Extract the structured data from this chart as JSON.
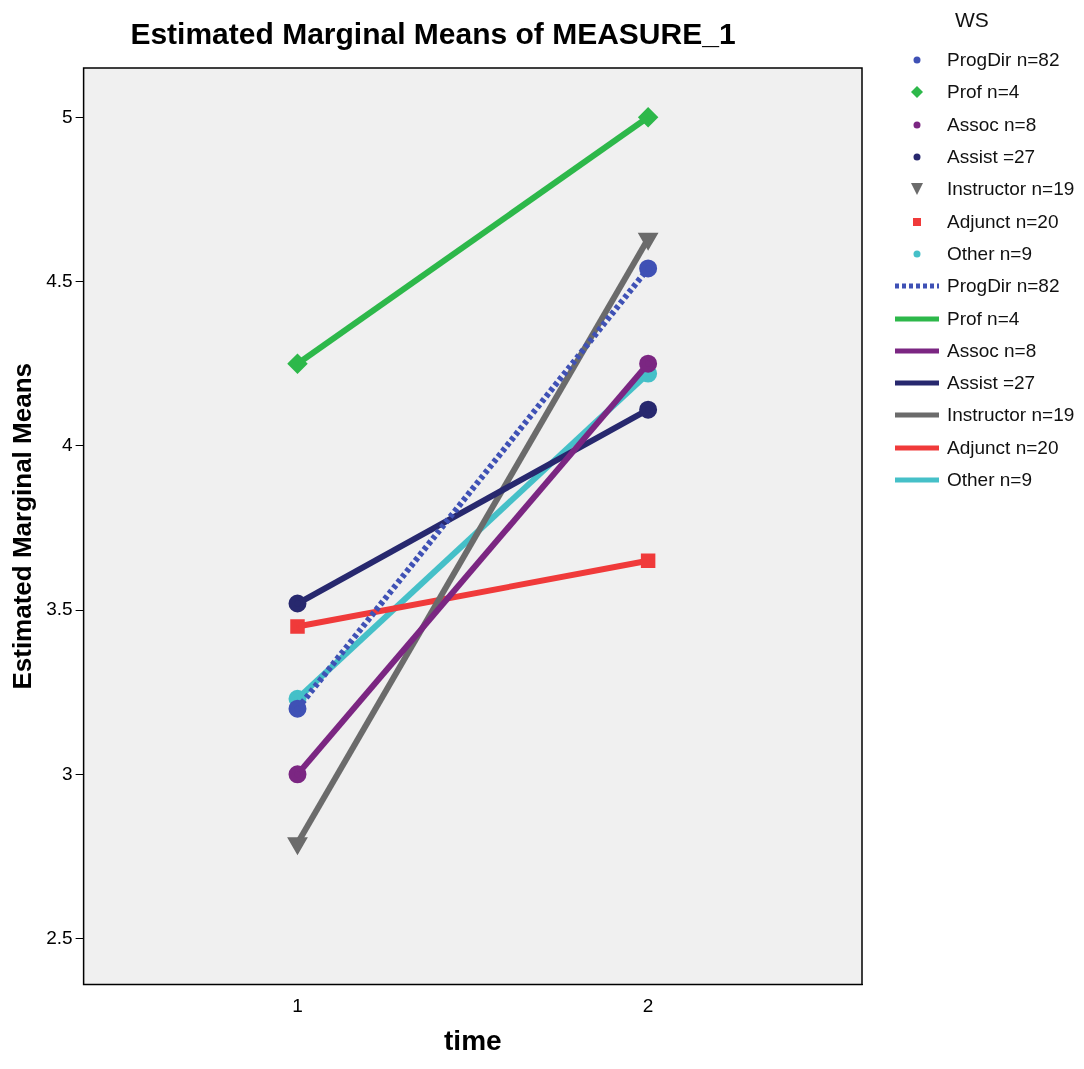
{
  "chart_data": {
    "type": "line",
    "title": "Estimated Marginal Means of MEASURE_1",
    "xlabel": "time",
    "ylabel": "Estimated Marginal Means",
    "legend_title": "WS",
    "legend": "right",
    "grid": false,
    "x": [
      1,
      2
    ],
    "xlim": [
      0.39,
      2.61
    ],
    "xticks": [
      1,
      2
    ],
    "ylim": [
      2.36,
      5.15
    ],
    "yticks": [
      2.5,
      3,
      3.5,
      4,
      4.5,
      5
    ],
    "series": [
      {
        "name": "ProgDir n=82",
        "color": "#3f51b5",
        "values": [
          3.2,
          4.54
        ],
        "marker": "circle",
        "line_style": "dotted"
      },
      {
        "name": "Prof n=4",
        "color": "#2db84a",
        "values": [
          4.25,
          5.0
        ],
        "marker": "diamond",
        "line_style": "solid"
      },
      {
        "name": "Assoc n=8",
        "color": "#7b2682",
        "values": [
          3.0,
          4.25
        ],
        "marker": "circle",
        "line_style": "solid"
      },
      {
        "name": "Assist =27",
        "color": "#27286e",
        "values": [
          3.52,
          4.11
        ],
        "marker": "circle",
        "line_style": "solid"
      },
      {
        "name": "Instructor n=19",
        "color": "#6b6b6b",
        "values": [
          2.79,
          4.63
        ],
        "marker": "triangle",
        "line_style": "solid"
      },
      {
        "name": "Adjunct n=20",
        "color": "#f03a3a",
        "values": [
          3.45,
          3.65
        ],
        "marker": "square",
        "line_style": "solid"
      },
      {
        "name": "Other n=9",
        "color": "#45c0c8",
        "values": [
          3.23,
          4.22
        ],
        "marker": "circle",
        "line_style": "solid"
      }
    ]
  }
}
